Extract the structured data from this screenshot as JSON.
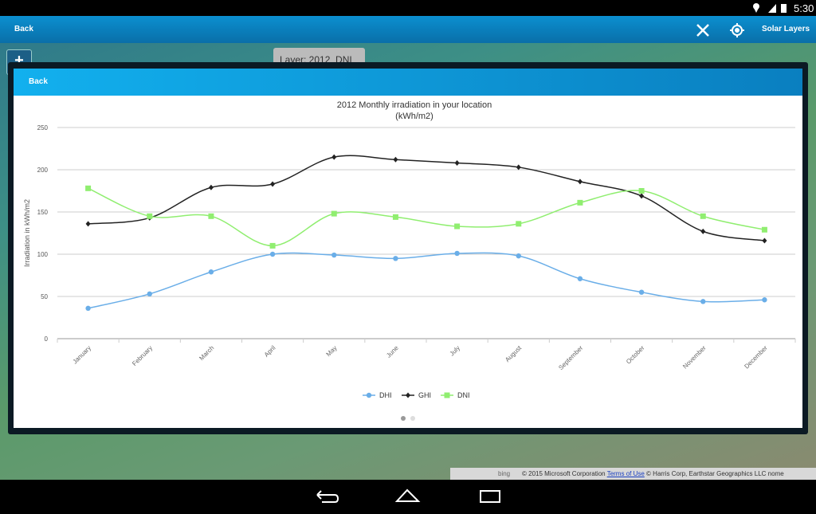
{
  "status_bar": {
    "time": "5:30"
  },
  "app_bar": {
    "back": "Back",
    "solar_layers": "Solar Layers"
  },
  "map": {
    "zoom_in": "+",
    "layer_label": "Layer: 2012_DNI",
    "bing": "bing",
    "copyright": "© 2015 Microsoft Corporation",
    "terms": "Terms of Use",
    "credits": "© Harris Corp, Earthstar Geographics LLC nome"
  },
  "dialog": {
    "back": "Back"
  },
  "chart_data": {
    "type": "line",
    "title": "2012 Monthly irradiation in your location (kWh/m2)",
    "y_label": "Irradiation in kWh/m2",
    "categories": [
      "January",
      "February",
      "March",
      "April",
      "May",
      "June",
      "July",
      "August",
      "September",
      "October",
      "November",
      "December"
    ],
    "series": [
      {
        "name": "DHI",
        "color": "#6aaee8",
        "marker": "circle",
        "values": [
          36,
          53,
          79,
          100,
          99,
          95,
          101,
          98,
          71,
          55,
          44,
          46
        ]
      },
      {
        "name": "GHI",
        "color": "#222222",
        "marker": "diamond",
        "values": [
          136,
          143,
          179,
          183,
          215,
          212,
          208,
          203,
          186,
          169,
          127,
          116
        ]
      },
      {
        "name": "DNI",
        "color": "#90ee70",
        "marker": "square",
        "values": [
          178,
          145,
          145,
          110,
          148,
          144,
          133,
          136,
          161,
          175,
          145,
          129
        ]
      }
    ],
    "ylim": [
      0,
      250
    ],
    "yticks": [
      0,
      50,
      100,
      150,
      200,
      250
    ],
    "grid": true,
    "smooth": true,
    "legend": "bottom"
  }
}
